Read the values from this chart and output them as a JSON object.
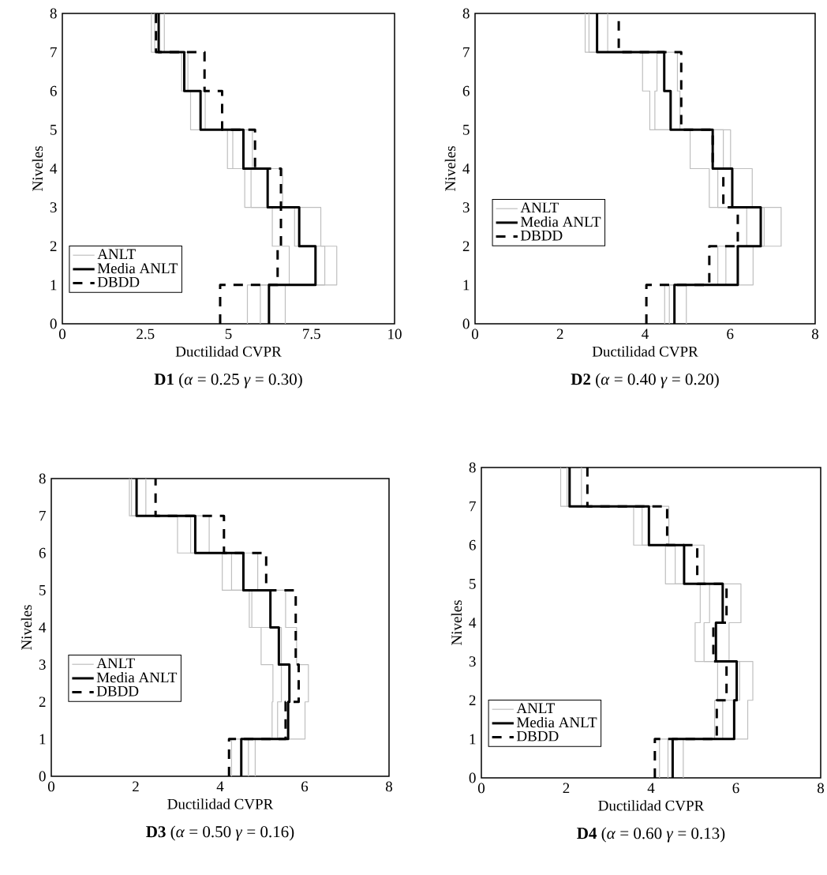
{
  "chart_data": [
    {
      "type": "line",
      "title": "**D1** (*α* = 0.25 *γ* = 0.30)",
      "xlabel": "Ductilidad CVPR",
      "ylabel": "Niveles",
      "xlim": [
        0,
        10
      ],
      "xticks": [
        0,
        2.5,
        5,
        7.5,
        10
      ],
      "ylim": [
        0,
        8
      ],
      "yticks": [
        0,
        1,
        2,
        3,
        4,
        5,
        6,
        7,
        8
      ],
      "legend": "bottom left",
      "series": [
        {
          "name": "ANLT",
          "color": "#bfbfbf",
          "line_style": "solid",
          "x": [
            5.57,
            5.57,
            6.83,
            6.83,
            6.32,
            6.32,
            5.49,
            5.49,
            4.97,
            4.97,
            3.86,
            3.86,
            3.59,
            3.59,
            2.68,
            2.68
          ],
          "values": [
            0,
            1,
            1,
            2,
            2,
            3,
            3,
            4,
            4,
            5,
            5,
            6,
            6,
            7,
            7,
            8
          ]
        },
        {
          "color": "#bfbfbf",
          "line_style": "solid",
          "x": [
            5.96,
            5.96,
            7.9,
            7.9,
            6.99,
            6.99,
            5.68,
            5.68,
            5.13,
            5.13,
            4.16,
            4.16,
            3.67,
            3.67,
            2.78,
            2.78
          ],
          "values": [
            0,
            1,
            1,
            2,
            2,
            3,
            3,
            4,
            4,
            5,
            5,
            6,
            6,
            7,
            7,
            8
          ]
        },
        {
          "color": "#bfbfbf",
          "line_style": "solid",
          "x": [
            6.71,
            6.71,
            8.26,
            8.26,
            7.78,
            7.78,
            6.63,
            6.63,
            5.72,
            5.72,
            4.3,
            4.3,
            3.78,
            3.78,
            3.07,
            3.07
          ],
          "values": [
            0,
            1,
            1,
            2,
            2,
            3,
            3,
            4,
            4,
            5,
            5,
            6,
            6,
            7,
            7,
            8
          ]
        },
        {
          "name": "Media ANLT",
          "color": "#000000",
          "line_style": "solid",
          "x": [
            6.22,
            6.22,
            7.62,
            7.62,
            7.13,
            7.13,
            6.18,
            6.18,
            5.45,
            5.45,
            4.16,
            4.16,
            3.67,
            3.67,
            2.9,
            2.9
          ],
          "values": [
            0,
            1,
            1,
            2,
            2,
            3,
            3,
            4,
            4,
            5,
            5,
            6,
            6,
            7,
            7,
            8
          ]
        },
        {
          "name": "DBDD",
          "color": "#000000",
          "line_style": "dashed",
          "x": [
            4.75,
            4.75,
            6.48,
            6.48,
            6.58,
            6.58,
            5.8,
            5.8,
            4.81,
            4.81,
            4.28,
            4.28,
            2.82,
            2.82
          ],
          "values": [
            0,
            1,
            1,
            2,
            2,
            4,
            4,
            5,
            5,
            6,
            6,
            7,
            7,
            8
          ]
        }
      ]
    },
    {
      "type": "line",
      "title": "**D2** (*α* = 0.40 *γ* = 0.20)",
      "xlabel": "Ductilidad CVPR",
      "ylabel": "Niveles",
      "xlim": [
        0,
        8
      ],
      "xticks": [
        0,
        2,
        4,
        6,
        8
      ],
      "ylim": [
        0,
        8
      ],
      "yticks": [
        0,
        1,
        2,
        3,
        4,
        5,
        6,
        7,
        8
      ],
      "legend": "left",
      "series": [
        {
          "name": "ANLT",
          "color": "#bfbfbf",
          "line_style": "solid",
          "x": [
            4.46,
            4.46,
            5.71,
            5.71,
            6.39,
            6.39,
            5.51,
            5.51,
            5.06,
            5.06,
            4.11,
            4.11,
            3.94,
            3.94,
            2.59,
            2.59
          ],
          "values": [
            0,
            1,
            1,
            2,
            2,
            3,
            3,
            4,
            4,
            5,
            5,
            6,
            6,
            7,
            7,
            8
          ]
        },
        {
          "color": "#bfbfbf",
          "line_style": "solid",
          "x": [
            4.57,
            4.57,
            5.9,
            5.9,
            6.8,
            6.8,
            5.71,
            5.71,
            5.84,
            5.84,
            4.23,
            4.23,
            4.28,
            4.28,
            2.68,
            2.68
          ],
          "values": [
            0,
            1,
            1,
            2,
            2,
            3,
            3,
            4,
            4,
            5,
            5,
            6,
            6,
            7,
            7,
            8
          ]
        },
        {
          "color": "#bfbfbf",
          "line_style": "solid",
          "x": [
            4.97,
            4.97,
            6.54,
            6.54,
            7.2,
            7.2,
            6.52,
            6.52,
            6.01,
            6.01,
            4.82,
            4.82,
            4.76,
            4.76,
            3.12,
            3.12
          ],
          "values": [
            0,
            1,
            1,
            2,
            2,
            3,
            3,
            4,
            4,
            5,
            5,
            6,
            6,
            7,
            7,
            8
          ]
        },
        {
          "name": "Media ANLT",
          "color": "#000000",
          "line_style": "solid",
          "x": [
            4.69,
            4.69,
            6.18,
            6.18,
            6.72,
            6.72,
            6.05,
            6.05,
            5.59,
            5.59,
            4.6,
            4.6,
            4.45,
            4.45,
            2.87,
            2.87
          ],
          "values": [
            0,
            1,
            1,
            2,
            2,
            3,
            3,
            4,
            4,
            5,
            5,
            6,
            6,
            7,
            7,
            8
          ]
        },
        {
          "name": "DBDD",
          "color": "#000000",
          "line_style": "dashed",
          "x": [
            4.03,
            4.03,
            5.51,
            5.51,
            6.18,
            6.18,
            5.84,
            5.84,
            5.59,
            5.59,
            4.85,
            4.85,
            3.38,
            3.38
          ],
          "values": [
            0,
            1,
            1,
            2,
            2,
            3,
            3,
            4,
            4,
            5,
            5,
            7,
            7,
            8
          ]
        }
      ]
    },
    {
      "type": "line",
      "title": "**D3** (*α* = 0.50 *γ* = 0.16)",
      "xlabel": "Ductilidad CVPR",
      "ylabel": "Niveles",
      "xlim": [
        0,
        8
      ],
      "xticks": [
        0,
        2,
        4,
        6,
        8
      ],
      "ylim": [
        0,
        8
      ],
      "yticks": [
        0,
        1,
        2,
        3,
        4,
        5,
        6,
        7,
        8
      ],
      "legend": "left",
      "series": [
        {
          "name": "ANLT",
          "color": "#bfbfbf",
          "line_style": "solid",
          "x": [
            4.27,
            4.27,
            5.23,
            5.23,
            5.25,
            5.25,
            4.97,
            4.97,
            4.69,
            4.69,
            4.05,
            4.05,
            2.99,
            2.99,
            1.85,
            1.85
          ],
          "values": [
            0,
            1,
            1,
            2,
            2,
            3,
            3,
            4,
            4,
            5,
            5,
            6,
            6,
            7,
            7,
            8
          ]
        },
        {
          "color": "#bfbfbf",
          "line_style": "solid",
          "x": [
            4.67,
            4.67,
            5.36,
            5.36,
            5.45,
            5.45,
            4.75,
            4.75,
            4.27,
            4.27,
            3.3,
            3.3,
            1.9,
            1.9
          ],
          "values": [
            0,
            1,
            1,
            2,
            2,
            4,
            4,
            5,
            5,
            6,
            6,
            7,
            7,
            8
          ]
        },
        {
          "color": "#bfbfbf",
          "line_style": "solid",
          "x": [
            4.83,
            4.83,
            6.01,
            6.01,
            6.09,
            6.09,
            5.81,
            5.81,
            5.55,
            5.55,
            4.89,
            4.89,
            3.74,
            3.74,
            2.24,
            2.24
          ],
          "values": [
            0,
            1,
            1,
            2,
            2,
            3,
            3,
            4,
            4,
            5,
            5,
            6,
            6,
            7,
            7,
            8
          ]
        },
        {
          "name": "Media ANLT",
          "color": "#000000",
          "line_style": "solid",
          "x": [
            4.5,
            4.5,
            5.61,
            5.61,
            5.64,
            5.64,
            5.39,
            5.39,
            5.19,
            5.19,
            4.55,
            4.55,
            3.41,
            3.41,
            2.02,
            2.02
          ],
          "values": [
            0,
            1,
            1,
            2,
            2,
            3,
            3,
            4,
            4,
            5,
            5,
            6,
            6,
            7,
            7,
            8
          ]
        },
        {
          "name": "DBDD",
          "color": "#000000",
          "line_style": "dashed",
          "x": [
            4.21,
            4.21,
            5.55,
            5.55,
            5.86,
            5.86,
            5.79,
            5.79,
            5.09,
            5.09,
            4.09,
            4.09,
            2.47,
            2.47
          ],
          "values": [
            0,
            1,
            1,
            2,
            2,
            3,
            3,
            5,
            5,
            6,
            6,
            7,
            7,
            8
          ]
        }
      ]
    },
    {
      "type": "line",
      "title": "**D4** (*α* = 0.60 *γ* = 0.13)",
      "xlabel": "Ductilidad CVPR",
      "ylabel": "Niveles",
      "xlim": [
        0,
        8
      ],
      "xticks": [
        0,
        2,
        4,
        6,
        8
      ],
      "ylim": [
        0,
        8
      ],
      "yticks": [
        0,
        1,
        2,
        3,
        4,
        5,
        6,
        7,
        8
      ],
      "legend": "bottom left",
      "series": [
        {
          "name": "ANLT",
          "color": "#bfbfbf",
          "line_style": "solid",
          "x": [
            4.2,
            4.2,
            5.5,
            5.5,
            5.57,
            5.57,
            5.04,
            5.04,
            5.16,
            5.16,
            4.34,
            4.34,
            3.59,
            3.59,
            1.87,
            1.87
          ],
          "values": [
            0,
            1,
            1,
            2,
            2,
            3,
            3,
            4,
            4,
            5,
            5,
            6,
            6,
            7,
            7,
            8
          ]
        },
        {
          "color": "#bfbfbf",
          "line_style": "solid",
          "x": [
            4.4,
            4.4,
            5.69,
            5.69,
            6.09,
            6.09,
            5.25,
            5.25,
            5.38,
            5.38,
            4.57,
            4.57,
            3.79,
            3.79,
            2.02,
            2.02
          ],
          "values": [
            0,
            1,
            1,
            2,
            2,
            3,
            3,
            4,
            4,
            5,
            5,
            6,
            6,
            7,
            7,
            8
          ]
        },
        {
          "color": "#bfbfbf",
          "line_style": "solid",
          "x": [
            4.76,
            4.76,
            6.28,
            6.28,
            6.4,
            6.4,
            5.84,
            5.84,
            6.12,
            6.12,
            5.25,
            5.25,
            4.42,
            4.42,
            2.36,
            2.36
          ],
          "values": [
            0,
            1,
            1,
            2,
            2,
            3,
            3,
            4,
            4,
            5,
            5,
            6,
            6,
            7,
            7,
            8
          ]
        },
        {
          "name": "Media ANLT",
          "color": "#000000",
          "line_style": "solid",
          "x": [
            4.51,
            4.51,
            5.96,
            5.96,
            6.02,
            6.02,
            5.53,
            5.53,
            5.69,
            5.69,
            4.78,
            4.78,
            3.95,
            3.95,
            2.08,
            2.08
          ],
          "values": [
            0,
            1,
            1,
            2,
            2,
            3,
            3,
            4,
            4,
            5,
            5,
            6,
            6,
            7,
            7,
            8
          ]
        },
        {
          "name": "DBDD",
          "color": "#000000",
          "line_style": "dashed",
          "x": [
            4.09,
            4.09,
            5.55,
            5.55,
            5.78,
            5.78,
            5.47,
            5.47,
            5.78,
            5.78,
            5.09,
            5.09,
            4.38,
            4.38,
            2.5,
            2.5
          ],
          "values": [
            0,
            1,
            1,
            2,
            2,
            3,
            3,
            4,
            4,
            5,
            5,
            6,
            6,
            7,
            7,
            8
          ]
        }
      ]
    }
  ]
}
